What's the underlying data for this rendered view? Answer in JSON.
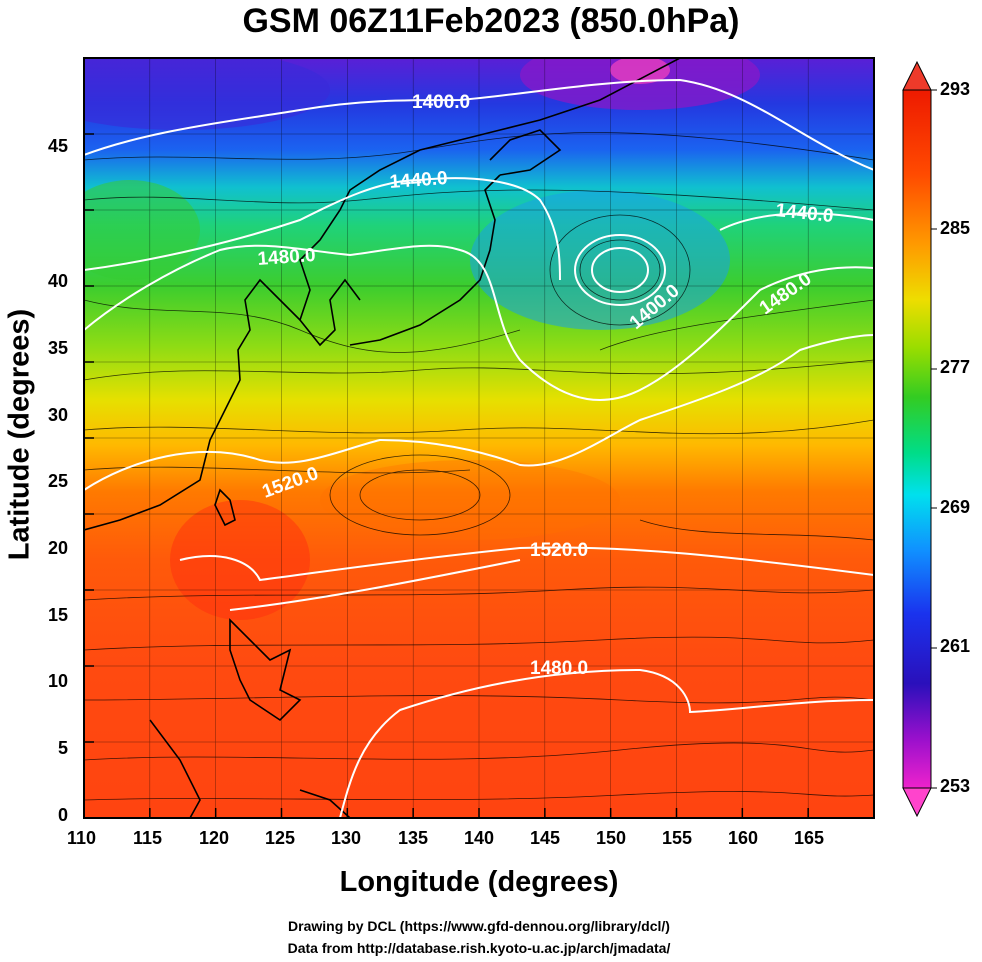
{
  "title": "GSM 06Z11Feb2023 (850.0hPa)",
  "x_axis": {
    "label": "Longitude (degrees)",
    "ticks": [
      "110",
      "115",
      "120",
      "125",
      "130",
      "135",
      "140",
      "145",
      "150",
      "155",
      "160",
      "165"
    ]
  },
  "y_axis": {
    "label": "Latitude  (degrees)",
    "ticks": [
      "0",
      "5",
      "10",
      "15",
      "20",
      "25",
      "30",
      "35",
      "40",
      "45"
    ]
  },
  "colorbar": {
    "ticks": [
      "293",
      "285",
      "277",
      "269",
      "261",
      "253"
    ],
    "colors": [
      "#ff55aa",
      "#9900cc",
      "#2020dd",
      "#1080ff",
      "#00ddee",
      "#00dd66",
      "#44dd00",
      "#ccee00",
      "#ffcc00",
      "#ff7700",
      "#ff3300",
      "#ee2200"
    ]
  },
  "contours": [
    {
      "label": "1400.0"
    },
    {
      "label": "1440.0"
    },
    {
      "label": "1440.0"
    },
    {
      "label": "1480.0"
    },
    {
      "label": "1400.0"
    },
    {
      "label": "1480.0"
    },
    {
      "label": "1520.0"
    },
    {
      "label": "1520.0"
    },
    {
      "label": "1480.0"
    }
  ],
  "credits": {
    "line1": "Drawing by DCL (https://www.gfd-dennou.org/library/dcl/)",
    "line2": "Data from http://database.rish.kyoto-u.ac.jp/arch/jmadata/"
  }
}
